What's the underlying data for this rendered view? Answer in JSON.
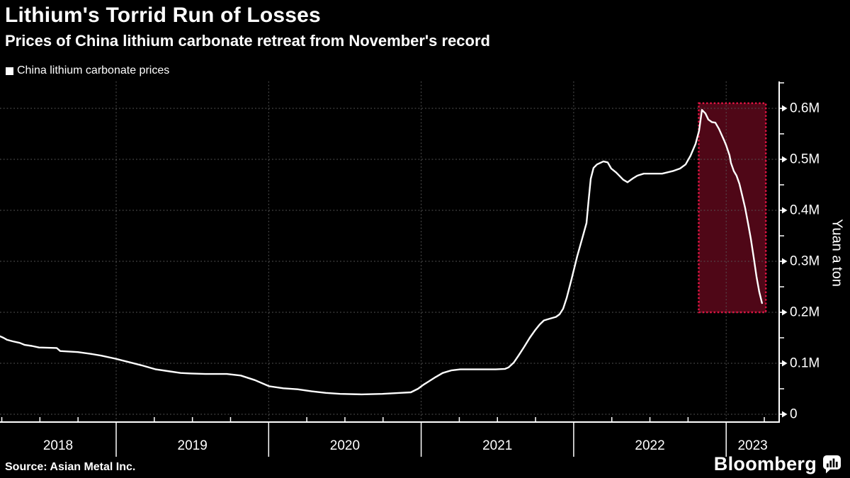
{
  "title": "Lithium's Torrid Run of Losses",
  "subtitle": "Prices of China lithium carbonate retreat from November's record",
  "legend": {
    "label": "China lithium carbonate prices",
    "swatch_color": "#ffffff"
  },
  "source": "Source: Asian Metal Inc.",
  "branding": {
    "wordmark": "Bloomberg",
    "icon": "bloomberg-chart-bubble-icon"
  },
  "colors": {
    "background": "#000000",
    "text": "#ffffff",
    "line": "#ffffff",
    "grid": "#575757",
    "axis": "#ffffff",
    "highlight_border": "#dc1441",
    "highlight_fill": "#dc1441",
    "highlight_fill_opacity": 0.36
  },
  "chart_data": {
    "type": "line",
    "title": "China lithium carbonate prices",
    "xlabel": "",
    "ylabel": "Yuan a ton",
    "x_unit": "year (fractional)",
    "y_unit": "million yuan a ton",
    "xlim": [
      2018.24,
      2023.35
    ],
    "ylim": [
      0,
      0.65
    ],
    "grid": "dotted",
    "legend_position": "top-left",
    "y_ticks": [
      {
        "value": 0.6,
        "label": "0.6M"
      },
      {
        "value": 0.5,
        "label": "0.5M"
      },
      {
        "value": 0.4,
        "label": "0.4M"
      },
      {
        "value": 0.3,
        "label": "0.3M"
      },
      {
        "value": 0.2,
        "label": "0.2M"
      },
      {
        "value": 0.1,
        "label": "0.1M"
      },
      {
        "value": 0,
        "label": "0"
      }
    ],
    "x_years": [
      {
        "year": 2018,
        "label": "2018"
      },
      {
        "year": 2019,
        "label": "2019"
      },
      {
        "year": 2020,
        "label": "2020"
      },
      {
        "year": 2021,
        "label": "2021"
      },
      {
        "year": 2022,
        "label": "2022"
      },
      {
        "year": 2023,
        "label": "2023"
      }
    ],
    "highlight_box": {
      "x_start": 2022.82,
      "x_end": 2023.26,
      "y_bottom": 0.2,
      "y_top": 0.61
    },
    "series": [
      {
        "name": "China lithium carbonate prices",
        "points": [
          [
            2018.238,
            0.153
          ],
          [
            2018.261,
            0.15
          ],
          [
            2018.285,
            0.146
          ],
          [
            2018.322,
            0.143
          ],
          [
            2018.368,
            0.14
          ],
          [
            2018.401,
            0.136
          ],
          [
            2018.447,
            0.134
          ],
          [
            2018.494,
            0.131
          ],
          [
            2018.61,
            0.13
          ],
          [
            2018.633,
            0.124
          ],
          [
            2018.749,
            0.122
          ],
          [
            2018.842,
            0.118
          ],
          [
            2018.902,
            0.115
          ],
          [
            2018.995,
            0.109
          ],
          [
            2019.088,
            0.102
          ],
          [
            2019.167,
            0.096
          ],
          [
            2019.26,
            0.088
          ],
          [
            2019.353,
            0.084
          ],
          [
            2019.423,
            0.081
          ],
          [
            2019.492,
            0.08
          ],
          [
            2019.585,
            0.079
          ],
          [
            2019.725,
            0.079
          ],
          [
            2019.817,
            0.076
          ],
          [
            2019.91,
            0.067
          ],
          [
            2020.003,
            0.055
          ],
          [
            2020.096,
            0.051
          ],
          [
            2020.189,
            0.049
          ],
          [
            2020.282,
            0.045
          ],
          [
            2020.375,
            0.042
          ],
          [
            2020.468,
            0.04
          ],
          [
            2020.607,
            0.039
          ],
          [
            2020.746,
            0.04
          ],
          [
            2020.862,
            0.042
          ],
          [
            2020.932,
            0.043
          ],
          [
            2020.979,
            0.05
          ],
          [
            2021.016,
            0.058
          ],
          [
            2021.048,
            0.064
          ],
          [
            2021.095,
            0.073
          ],
          [
            2021.141,
            0.081
          ],
          [
            2021.197,
            0.086
          ],
          [
            2021.257,
            0.088
          ],
          [
            2021.397,
            0.088
          ],
          [
            2021.489,
            0.088
          ],
          [
            2021.55,
            0.089
          ],
          [
            2021.573,
            0.092
          ],
          [
            2021.606,
            0.101
          ],
          [
            2021.638,
            0.115
          ],
          [
            2021.675,
            0.132
          ],
          [
            2021.712,
            0.15
          ],
          [
            2021.745,
            0.164
          ],
          [
            2021.777,
            0.176
          ],
          [
            2021.805,
            0.184
          ],
          [
            2021.838,
            0.187
          ],
          [
            2021.884,
            0.191
          ],
          [
            2021.907,
            0.196
          ],
          [
            2021.931,
            0.207
          ],
          [
            2021.954,
            0.228
          ],
          [
            2021.986,
            0.265
          ],
          [
            2022.023,
            0.31
          ],
          [
            2022.056,
            0.345
          ],
          [
            2022.084,
            0.375
          ],
          [
            2022.098,
            0.42
          ],
          [
            2022.112,
            0.462
          ],
          [
            2022.13,
            0.483
          ],
          [
            2022.153,
            0.49
          ],
          [
            2022.195,
            0.496
          ],
          [
            2022.223,
            0.494
          ],
          [
            2022.246,
            0.482
          ],
          [
            2022.279,
            0.474
          ],
          [
            2022.325,
            0.46
          ],
          [
            2022.353,
            0.455
          ],
          [
            2022.39,
            0.463
          ],
          [
            2022.418,
            0.468
          ],
          [
            2022.46,
            0.472
          ],
          [
            2022.58,
            0.472
          ],
          [
            2022.65,
            0.477
          ],
          [
            2022.697,
            0.482
          ],
          [
            2022.734,
            0.49
          ],
          [
            2022.766,
            0.507
          ],
          [
            2022.799,
            0.53
          ],
          [
            2022.822,
            0.556
          ],
          [
            2022.841,
            0.597
          ],
          [
            2022.864,
            0.59
          ],
          [
            2022.883,
            0.578
          ],
          [
            2022.906,
            0.573
          ],
          [
            2022.929,
            0.572
          ],
          [
            2022.952,
            0.56
          ],
          [
            2022.985,
            0.538
          ],
          [
            2022.999,
            0.528
          ],
          [
            2023.022,
            0.508
          ],
          [
            2023.031,
            0.493
          ],
          [
            2023.05,
            0.477
          ],
          [
            2023.068,
            0.468
          ],
          [
            2023.087,
            0.452
          ],
          [
            2023.106,
            0.428
          ],
          [
            2023.124,
            0.405
          ],
          [
            2023.143,
            0.375
          ],
          [
            2023.161,
            0.345
          ],
          [
            2023.18,
            0.308
          ],
          [
            2023.199,
            0.27
          ],
          [
            2023.217,
            0.24
          ],
          [
            2023.235,
            0.218
          ]
        ]
      }
    ]
  }
}
